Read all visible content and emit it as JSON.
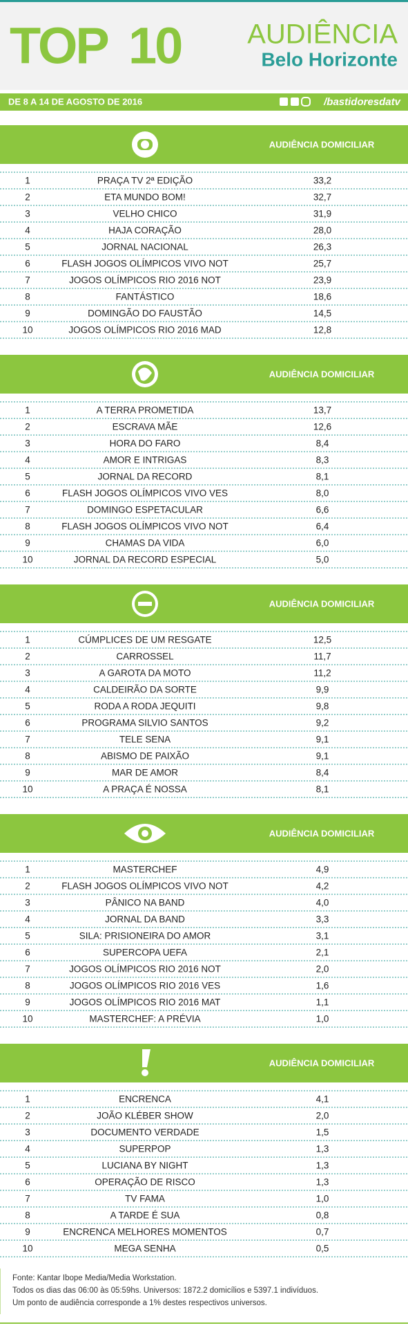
{
  "header": {
    "title_a": "TOP",
    "title_b": "10",
    "subtitle": "AUDIÊNCIA",
    "city": "Belo Horizonte",
    "period": "DE 8 A 14 DE AGOSTO DE 2016",
    "handle": "/bastidoresdatv"
  },
  "sections": [
    {
      "column": "AUDIÊNCIA DOMICILIAR",
      "rows": [
        [
          "1",
          "PRAÇA TV 2ª EDIÇÃO",
          "33,2"
        ],
        [
          "2",
          "ETA MUNDO BOM!",
          "32,7"
        ],
        [
          "3",
          "VELHO CHICO",
          "31,9"
        ],
        [
          "4",
          "HAJA CORAÇÃO",
          "28,0"
        ],
        [
          "5",
          "JORNAL NACIONAL",
          "26,3"
        ],
        [
          "6",
          "FLASH JOGOS OLÍMPICOS VIVO NOT",
          "25,7"
        ],
        [
          "7",
          "JOGOS OLÍMPICOS RIO 2016 NOT",
          "23,9"
        ],
        [
          "8",
          "FANTÁSTICO",
          "18,6"
        ],
        [
          "9",
          "DOMINGÃO DO FAUSTÃO",
          "14,5"
        ],
        [
          "10",
          "JOGOS OLÍMPICOS RIO 2016 MAD",
          "12,8"
        ]
      ]
    },
    {
      "column": "AUDIÊNCIA DOMICILIAR",
      "rows": [
        [
          "1",
          "A TERRA PROMETIDA",
          "13,7"
        ],
        [
          "2",
          "ESCRAVA MÃE",
          "12,6"
        ],
        [
          "3",
          "HORA DO FARO",
          "8,4"
        ],
        [
          "4",
          "AMOR E INTRIGAS",
          "8,3"
        ],
        [
          "5",
          "JORNAL DA RECORD",
          "8,1"
        ],
        [
          "6",
          "FLASH JOGOS OLÍMPICOS VIVO VES",
          "8,0"
        ],
        [
          "7",
          "DOMINGO ESPETACULAR",
          "6,6"
        ],
        [
          "8",
          "FLASH JOGOS OLÍMPICOS VIVO NOT",
          "6,4"
        ],
        [
          "9",
          "CHAMAS DA VIDA",
          "6,0"
        ],
        [
          "10",
          "JORNAL DA RECORD ESPECIAL",
          "5,0"
        ]
      ]
    },
    {
      "column": "AUDIÊNCIA DOMICILIAR",
      "rows": [
        [
          "1",
          "CÚMPLICES DE UM RESGATE",
          "12,5"
        ],
        [
          "2",
          "CARROSSEL",
          "11,7"
        ],
        [
          "3",
          "A GAROTA DA MOTO",
          "11,2"
        ],
        [
          "4",
          "CALDEIRÃO DA SORTE",
          "9,9"
        ],
        [
          "5",
          "RODA A RODA JEQUITI",
          "9,8"
        ],
        [
          "6",
          "PROGRAMA SILVIO SANTOS",
          "9,2"
        ],
        [
          "7",
          "TELE SENA",
          "9,1"
        ],
        [
          "8",
          "ABISMO DE PAIXÃO",
          "9,1"
        ],
        [
          "9",
          "MAR DE AMOR",
          "8,4"
        ],
        [
          "10",
          "A PRAÇA É NOSSA",
          "8,1"
        ]
      ]
    },
    {
      "column": "AUDIÊNCIA DOMICILIAR",
      "rows": [
        [
          "1",
          "MASTERCHEF",
          "4,9"
        ],
        [
          "2",
          "FLASH JOGOS OLÍMPICOS VIVO NOT",
          "4,2"
        ],
        [
          "3",
          "PÂNICO NA BAND",
          "4,0"
        ],
        [
          "4",
          "JORNAL DA BAND",
          "3,3"
        ],
        [
          "5",
          "SILA: PRISIONEIRA DO AMOR",
          "3,1"
        ],
        [
          "6",
          "SUPERCOPA UEFA",
          "2,1"
        ],
        [
          "7",
          "JOGOS OLÍMPICOS RIO 2016 NOT",
          "2,0"
        ],
        [
          "8",
          "JOGOS OLÍMPICOS RIO 2016 VES",
          "1,6"
        ],
        [
          "9",
          "JOGOS OLÍMPICOS RIO 2016 MAT",
          "1,1"
        ],
        [
          "10",
          "MASTERCHEF: A PRÉVIA",
          "1,0"
        ]
      ]
    },
    {
      "column": "AUDIÊNCIA DOMICILIAR",
      "rows": [
        [
          "1",
          "ENCRENCA",
          "4,1"
        ],
        [
          "2",
          "JOÃO KLÉBER SHOW",
          "2,0"
        ],
        [
          "3",
          "DOCUMENTO VERDADE",
          "1,5"
        ],
        [
          "4",
          "SUPERPOP",
          "1,3"
        ],
        [
          "5",
          "LUCIANA BY NIGHT",
          "1,3"
        ],
        [
          "6",
          "OPERAÇÃO DE RISCO",
          "1,3"
        ],
        [
          "7",
          "TV FAMA",
          "1,0"
        ],
        [
          "8",
          "A TARDE É SUA",
          "0,8"
        ],
        [
          "9",
          "ENCRENCA MELHORES MOMENTOS",
          "0,7"
        ],
        [
          "10",
          "MEGA SENHA",
          "0,5"
        ]
      ]
    }
  ],
  "footer": [
    "Fonte: Kantar Ibope Media/Media Workstation.",
    "Todos os dias das 06:00 às 05:59hs. Universos: 1872.2 domicílios e 5397.1 indivíduos.",
    "Um ponto de audiência corresponde a 1% destes respectivos universos."
  ]
}
